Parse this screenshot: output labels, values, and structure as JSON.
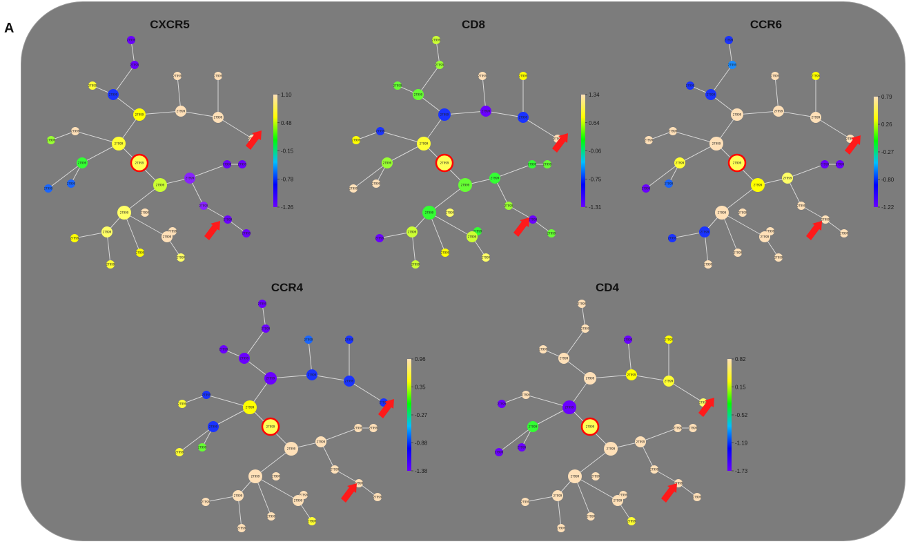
{
  "panel_label": "A",
  "node_label_text": "27999",
  "highlight_color": "#ff0000",
  "arrow_color": "#ff1a1a",
  "colorscale": [
    "#ffe0b8",
    "#ffff00",
    "#00ff00",
    "#00bfff",
    "#0000ff",
    "#6a00ff"
  ],
  "graphs": [
    {
      "name": "CXCR5",
      "ticks": [
        "1.10",
        "0.48",
        "-0.15",
        "-0.78",
        "-1.26"
      ]
    },
    {
      "name": "CD8",
      "ticks": [
        "1.34",
        "0.64",
        "-0.06",
        "-0.75",
        "-1.31"
      ]
    },
    {
      "name": "CCR6",
      "ticks": [
        "0.79",
        "0.26",
        "-0.27",
        "-0.80",
        "-1.22"
      ]
    },
    {
      "name": "CCR4",
      "ticks": [
        "0.96",
        "0.35",
        "-0.27",
        "-0.88",
        "-1.38"
      ]
    },
    {
      "name": "CD4",
      "ticks": [
        "0.82",
        "0.15",
        "-0.52",
        "-1.19",
        "-1.73"
      ]
    }
  ],
  "node_colors": {
    "CXCR5": [
      "#6a00ff",
      "#6a00ff",
      "#ffff33",
      "#1a33ff",
      "#ffe0b8",
      "#ffe0b8",
      "#ffff00",
      "#ffe0b8",
      "#ffe0b8",
      "#ffe0b8",
      "#ffe0b8",
      "#99ff33",
      "#ffff33",
      "#33ff33",
      "#1a66ff",
      "#1a66ff",
      "#ccff33",
      "#8822ff",
      "#6a00ff",
      "#6a00ff",
      "#8822ff",
      "#6a00ff",
      "#6a00ff",
      "#ffff66",
      "#ffe0b8",
      "#ffe0b8",
      "#ffff66",
      "#ffff00",
      "#ffff33",
      "#ffe0b8",
      "#ffff66",
      "#ffff00"
    ],
    "CD8": [
      "#ccff33",
      "#99ff33",
      "#66ff33",
      "#66ff33",
      "#ffe0b8",
      "#ffff00",
      "#1a33ff",
      "#6a00ff",
      "#1a33ff",
      "#ffe0b8",
      "#1a33ff",
      "#ffff00",
      "#ffff33",
      "#99ff33",
      "#ffe0b8",
      "#ffe0b8",
      "#66ff33",
      "#33ff33",
      "#33ff33",
      "#66ff33",
      "#99ff33",
      "#6a00ff",
      "#66ff33",
      "#33ff33",
      "#ffff66",
      "#33ff33",
      "#ccff33",
      "#6a00ff",
      "#ccff33",
      "#ccff33",
      "#ffff66",
      "#ffff00"
    ],
    "CCR6": [
      "#1a33ff",
      "#1a8cff",
      "#1a33ff",
      "#1a33ff",
      "#ffe0b8",
      "#ffff00",
      "#ffe0b8",
      "#ffe0b8",
      "#ffe0b8",
      "#ffe0b8",
      "#ffe0b8",
      "#ffe0b8",
      "#ffe0b8",
      "#ffff33",
      "#1a66ff",
      "#6a00ff",
      "#ffff00",
      "#ffff66",
      "#6a00ff",
      "#6a00ff",
      "#ffe0b8",
      "#ffe0b8",
      "#ffe0b8",
      "#ffe0b8",
      "#ffe0b8",
      "#ffe0b8",
      "#1a33ff",
      "#1a33ff",
      "#ffe0b8",
      "#ffe0b8",
      "#ffe0b8",
      "#ffe0b8"
    ],
    "CCR4": [
      "#6a00ff",
      "#6a00ff",
      "#6a00ff",
      "#6a00ff",
      "#1a66ff",
      "#1a33ff",
      "#6a00ff",
      "#1a33ff",
      "#1a33ff",
      "#1a33ff",
      "#1a33ff",
      "#ffff33",
      "#ffff00",
      "#1a33ff",
      "#66ff33",
      "#ffff33",
      "#ffe0b8",
      "#ffe0b8",
      "#ffe0b8",
      "#ffe0b8",
      "#ffe0b8",
      "#ffe0b8",
      "#ffe0b8",
      "#ffe0b8",
      "#ffe0b8",
      "#ffe0b8",
      "#ffe0b8",
      "#ffe0b8",
      "#ffe0b8",
      "#ffe0b8",
      "#ffff33",
      "#ffe0b8"
    ],
    "CD4": [
      "#ffe0b8",
      "#ffe0b8",
      "#ffe0b8",
      "#ffe0b8",
      "#6a00ff",
      "#ffff00",
      "#ffe0b8",
      "#ffff00",
      "#ffff33",
      "#ffff66",
      "#ffe0b8",
      "#6a00ff",
      "#6a00ff",
      "#33ff33",
      "#6a00ff",
      "#6a00ff",
      "#ffe0b8",
      "#ffe0b8",
      "#ffe0b8",
      "#ffe0b8",
      "#ffe0b8",
      "#ffe0b8",
      "#ffe0b8",
      "#ffe0b8",
      "#ffe0b8",
      "#ffe0b8",
      "#ffe0b8",
      "#ffe0b8",
      "#ffe0b8",
      "#ffe0b8",
      "#ffff33",
      "#ffe0b8"
    ]
  }
}
